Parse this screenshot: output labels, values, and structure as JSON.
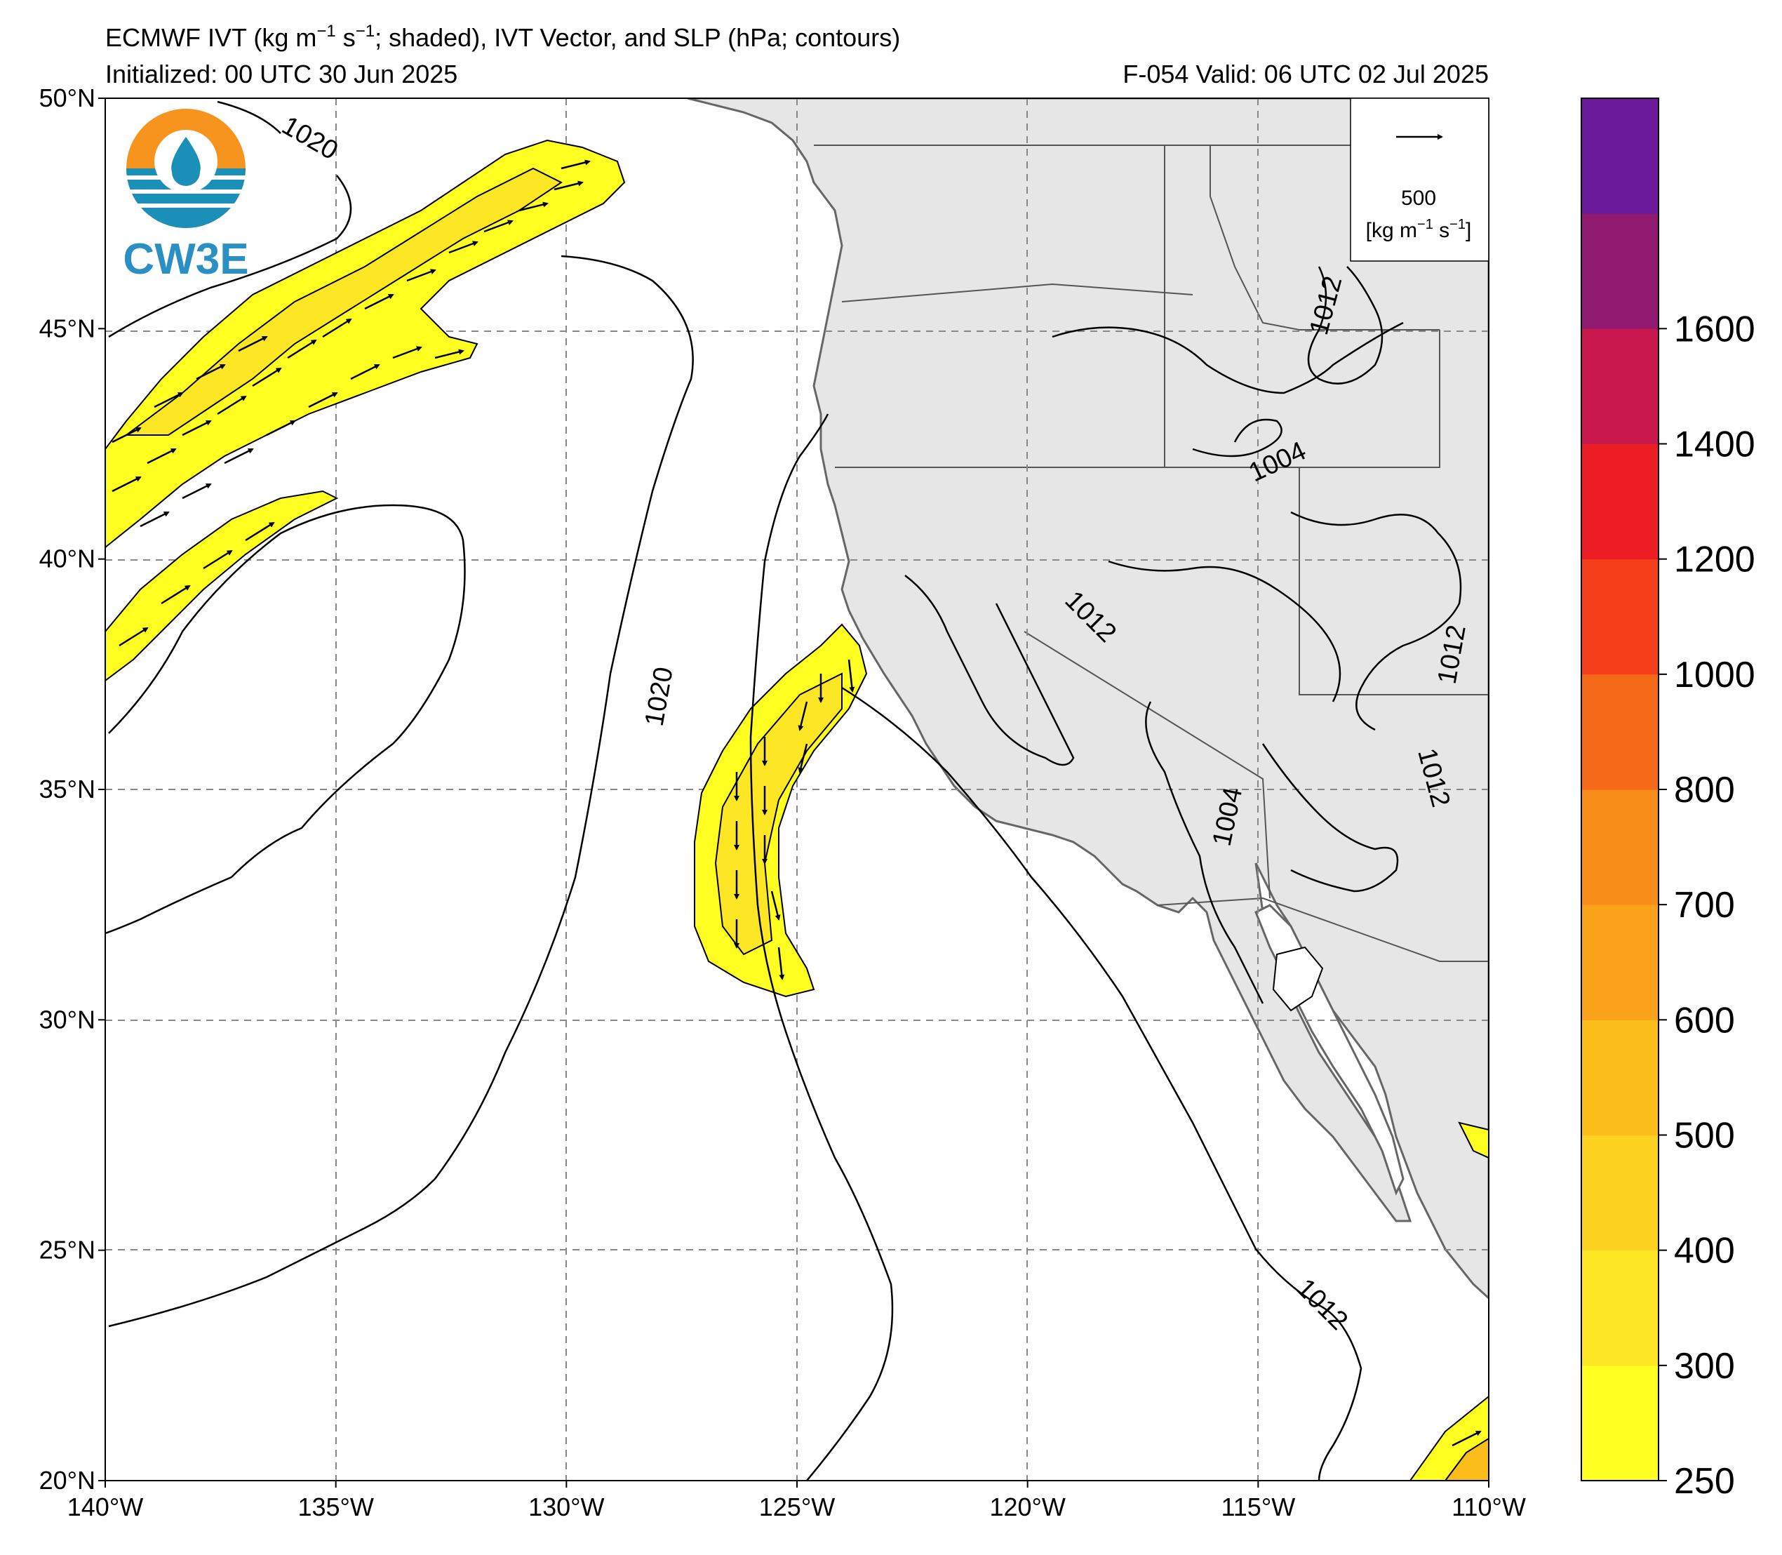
{
  "header": {
    "title_prefix": "ECMWF IVT (kg m",
    "title_exp1": "−1",
    "title_mid": " s",
    "title_exp2": "−1",
    "title_suffix": "; shaded), IVT Vector, and SLP (hPa; contours)",
    "initialized": "Initialized: 00 UTC 30 Jun 2025",
    "valid": "F-054  Valid: 06 UTC 02 Jul 2025"
  },
  "logo": {
    "text": "CW3E",
    "icon": "water-drop-logo-icon"
  },
  "map": {
    "lon_labels": [
      "140°W",
      "135°W",
      "130°W",
      "125°W",
      "120°W",
      "115°W",
      "110°W"
    ],
    "lat_labels": [
      "50°N",
      "45°N",
      "40°N",
      "35°N",
      "30°N",
      "25°N",
      "20°N"
    ],
    "lon_range": [
      -140,
      -110
    ],
    "lat_range": [
      20,
      50
    ],
    "contour_labels": [
      "1020",
      "1020",
      "1012",
      "1004",
      "1012",
      "1012",
      "1004",
      "1012",
      "1012"
    ],
    "land_color": "#e6e6e6",
    "ivt_color_low": "#ffff22",
    "ivt_color_mid": "#fde725"
  },
  "vector_key": {
    "value": "500",
    "unit_prefix": "[kg m",
    "unit_exp1": "−1",
    "unit_mid": " s",
    "unit_exp2": "−1",
    "unit_suffix": "]"
  },
  "colorbar": {
    "levels": [
      250,
      300,
      400,
      500,
      600,
      700,
      800,
      1000,
      1200,
      1400,
      1600
    ],
    "tick_labels": [
      "250",
      "300",
      "400",
      "500",
      "600",
      "700",
      "800",
      "1000",
      "1200",
      "1400",
      "1600"
    ],
    "colors": [
      "#ffff22",
      "#fde725",
      "#fdd11f",
      "#fbbd1a",
      "#faa21a",
      "#f78c19",
      "#f56a18",
      "#f43f1a",
      "#ec1e24",
      "#c8184d",
      "#8f1a70",
      "#6a1a9b"
    ]
  }
}
